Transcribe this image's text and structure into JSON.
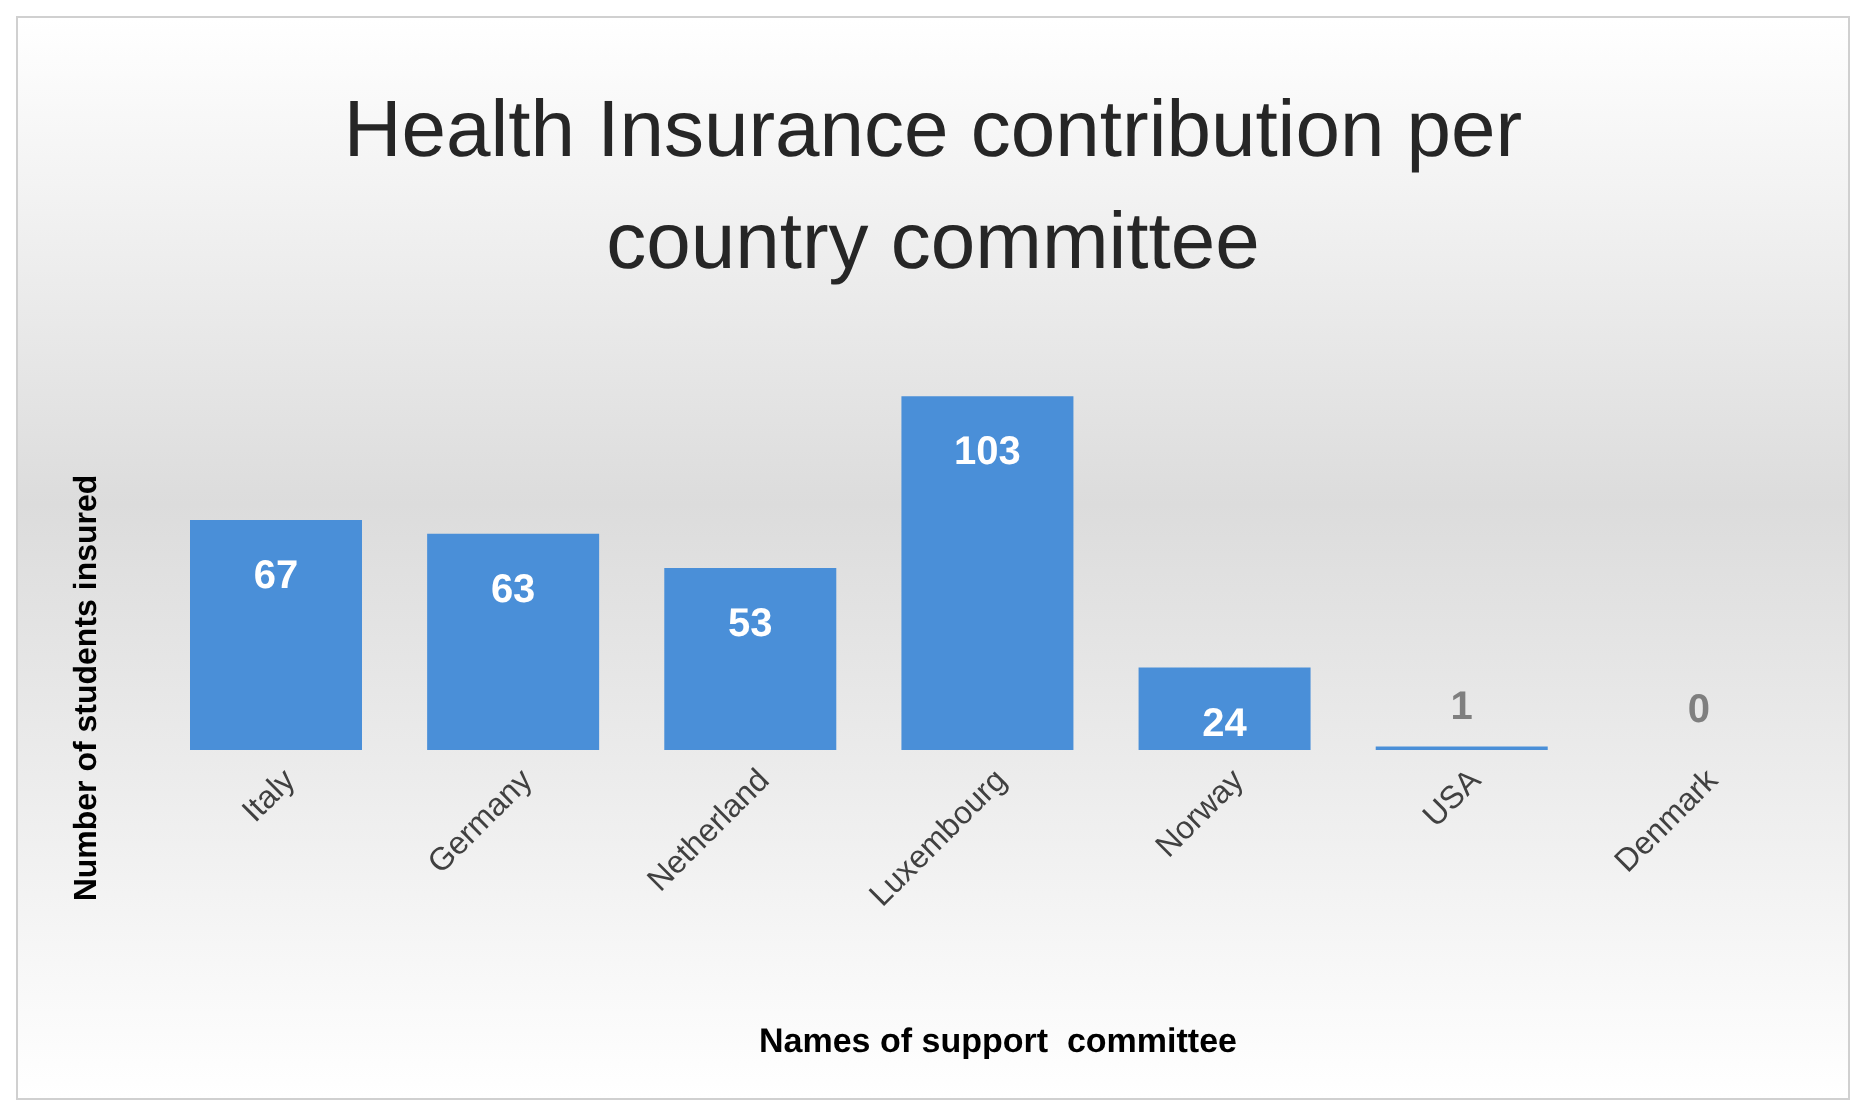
{
  "chart_data": {
    "type": "bar",
    "title": "Health Insurance contribution per country committee",
    "xlabel": "Names of support  committee",
    "ylabel": "Number of students insured",
    "categories": [
      "Italy",
      "Germany",
      "Netherland",
      "Luxembourg",
      "Norway",
      "USA",
      "Denmark"
    ],
    "values": [
      67,
      63,
      53,
      103,
      24,
      1,
      0
    ],
    "color": "#4a8fd8",
    "data_labels": true,
    "grid": false,
    "legend": false
  }
}
